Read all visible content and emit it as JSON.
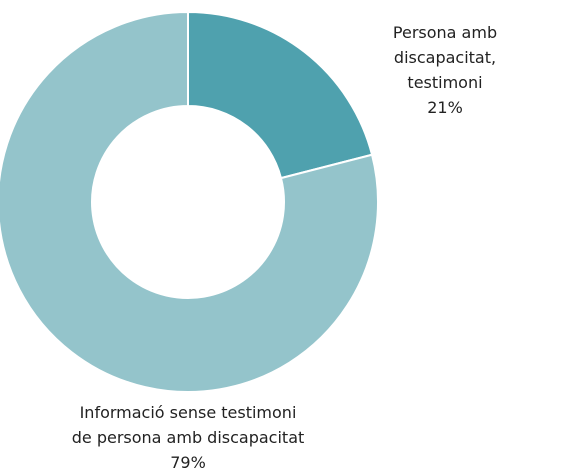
{
  "chart_data": {
    "type": "donut",
    "categories": [
      "Persona amb discapacitat,\ntestimoni",
      "Informació sense testimoni\nde persona amb discapacitat"
    ],
    "values": [
      21,
      79
    ],
    "value_labels": [
      "21%",
      "79%"
    ],
    "colors": [
      "#4fa1ae",
      "#94c4cb"
    ]
  }
}
